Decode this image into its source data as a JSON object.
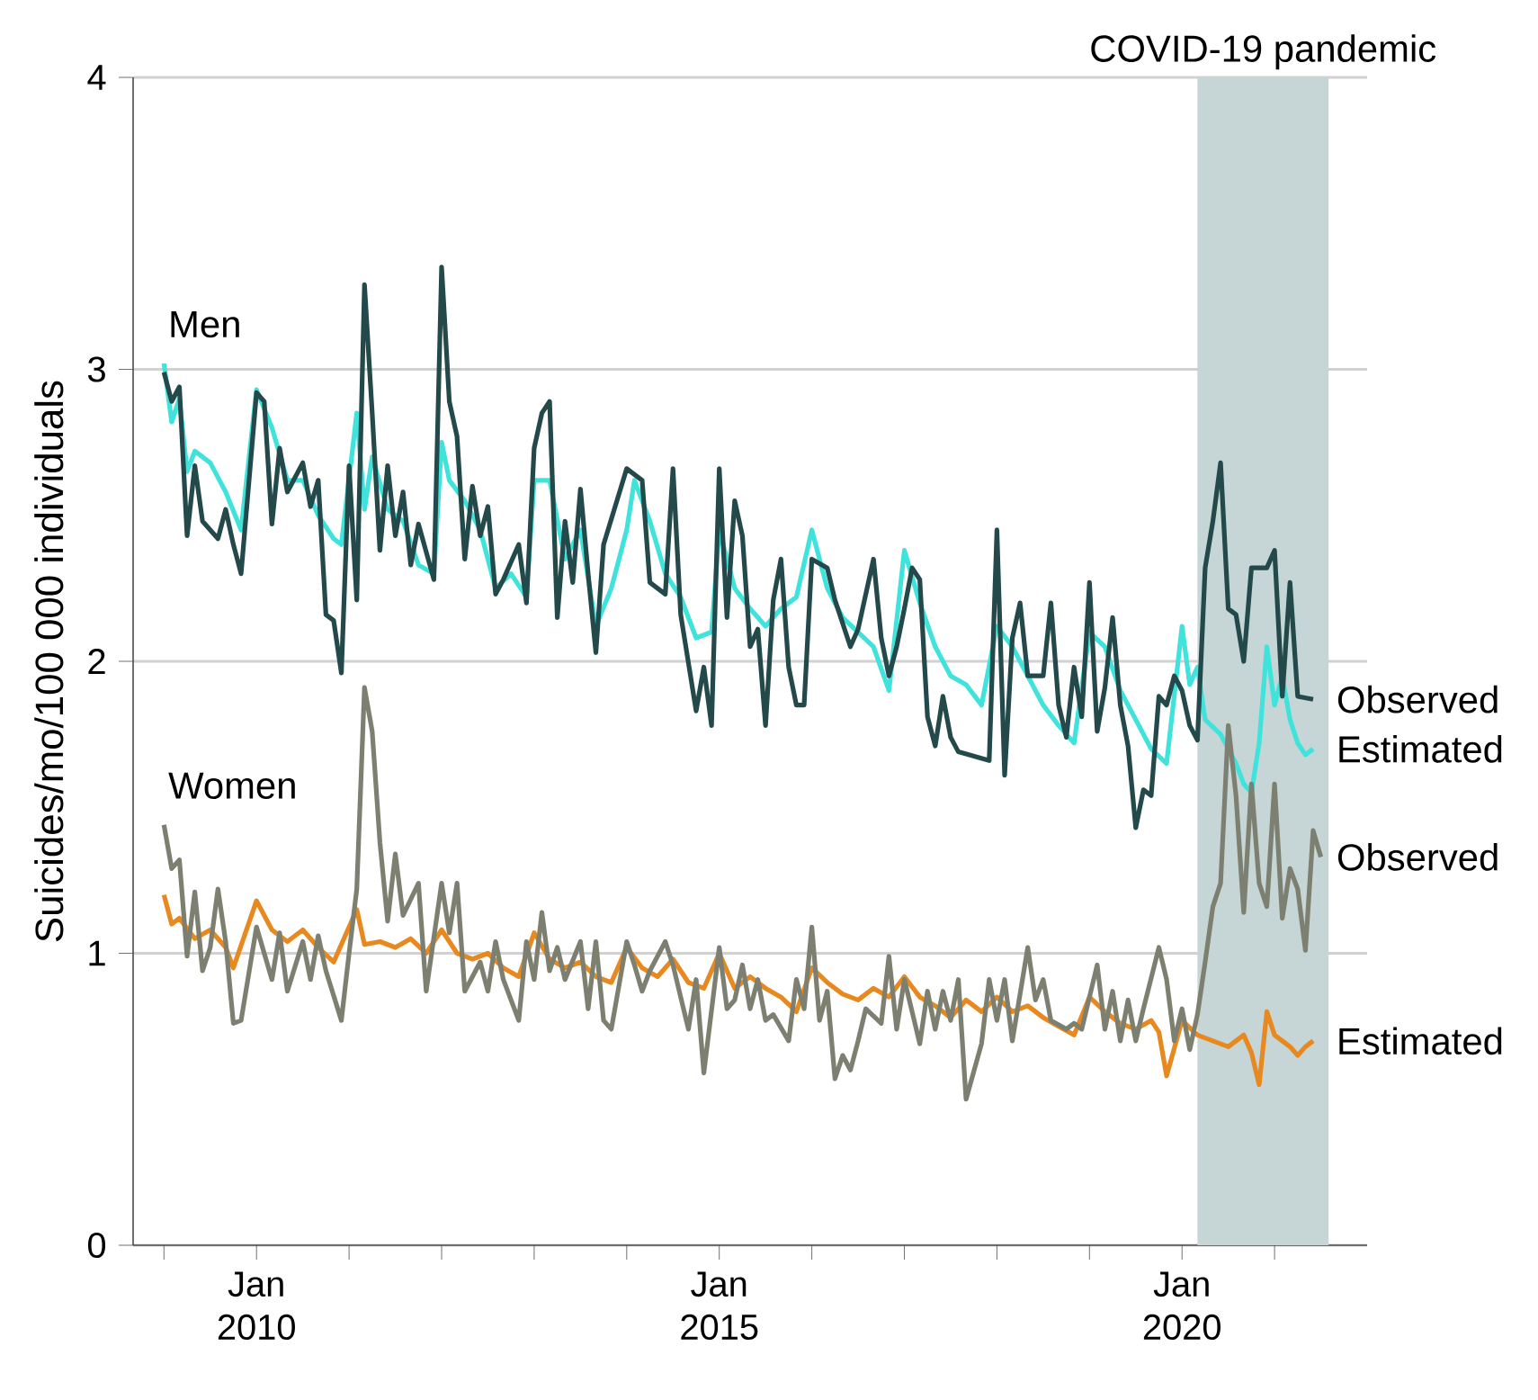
{
  "chart_data": {
    "type": "line",
    "ylabel": "Suicides/mo/100 000 individuals",
    "annotations": [
      "Men",
      "Women"
    ],
    "xlim": [
      "2008-09",
      "2022-01"
    ],
    "ylim": [
      0,
      4
    ],
    "xticks": [
      {
        "value": "2009-01",
        "label": null
      },
      {
        "value": "2010-01",
        "label": "Jan 2010"
      },
      {
        "value": "2011-01",
        "label": null
      },
      {
        "value": "2012-01",
        "label": null
      },
      {
        "value": "2013-01",
        "label": null
      },
      {
        "value": "2014-01",
        "label": null
      },
      {
        "value": "2015-01",
        "label": "Jan 2015"
      },
      {
        "value": "2016-01",
        "label": null
      },
      {
        "value": "2017-01",
        "label": null
      },
      {
        "value": "2018-01",
        "label": null
      },
      {
        "value": "2019-01",
        "label": null
      },
      {
        "value": "2020-01",
        "label": "Jan 2020"
      },
      {
        "value": "2021-01",
        "label": null
      }
    ],
    "yticks": [
      0,
      1,
      2,
      3,
      4
    ],
    "grid": "y",
    "bands": [
      {
        "axis": "x",
        "from": "2020-03",
        "to": "2021-08",
        "label": "COVID-19 pandemic",
        "color": "#c6d6d6"
      }
    ],
    "series": [
      {
        "name": "Estimated",
        "color": "#3fe3dc",
        "x": [
          "2009-01",
          "2009-02",
          "2009-03",
          "2009-04",
          "2009-05",
          "2009-07",
          "2009-09",
          "2009-11",
          "2010-01",
          "2010-03",
          "2010-05",
          "2010-07",
          "2010-09",
          "2010-11",
          "2010-12",
          "2011-02",
          "2011-03",
          "2011-04",
          "2011-06",
          "2011-08",
          "2011-10",
          "2011-12",
          "2012-01",
          "2012-02",
          "2012-04",
          "2012-06",
          "2012-08",
          "2012-10",
          "2012-12",
          "2013-01",
          "2013-03",
          "2013-05",
          "2013-07",
          "2013-09",
          "2013-11",
          "2014-01",
          "2014-02",
          "2014-04",
          "2014-06",
          "2014-08",
          "2014-10",
          "2014-12",
          "2015-01",
          "2015-03",
          "2015-05",
          "2015-07",
          "2015-09",
          "2015-11",
          "2016-01",
          "2016-03",
          "2016-05",
          "2016-07",
          "2016-09",
          "2016-11",
          "2017-01",
          "2017-03",
          "2017-05",
          "2017-07",
          "2017-09",
          "2017-11",
          "2018-01",
          "2018-03",
          "2018-05",
          "2018-07",
          "2018-09",
          "2018-11",
          "2019-01",
          "2019-03",
          "2019-05",
          "2019-07",
          "2019-09",
          "2019-11",
          "2020-01",
          "2020-02",
          "2020-03",
          "2020-04",
          "2020-06",
          "2020-08",
          "2020-09",
          "2020-10",
          "2020-11",
          "2020-12",
          "2021-01",
          "2021-02",
          "2021-03",
          "2021-04",
          "2021-05",
          "2021-06"
        ],
        "values": [
          3.02,
          2.82,
          2.9,
          2.65,
          2.72,
          2.68,
          2.58,
          2.45,
          2.93,
          2.8,
          2.62,
          2.62,
          2.5,
          2.42,
          2.4,
          2.85,
          2.52,
          2.7,
          2.52,
          2.48,
          2.33,
          2.3,
          2.75,
          2.62,
          2.55,
          2.45,
          2.25,
          2.3,
          2.22,
          2.62,
          2.62,
          2.35,
          2.45,
          2.12,
          2.25,
          2.45,
          2.62,
          2.48,
          2.3,
          2.22,
          2.08,
          2.1,
          2.45,
          2.25,
          2.18,
          2.12,
          2.18,
          2.22,
          2.45,
          2.25,
          2.15,
          2.1,
          2.05,
          1.9,
          2.38,
          2.2,
          2.05,
          1.95,
          1.92,
          1.85,
          2.12,
          2.05,
          1.95,
          1.85,
          1.78,
          1.72,
          2.1,
          2.05,
          1.9,
          1.8,
          1.7,
          1.65,
          2.12,
          1.92,
          1.98,
          1.8,
          1.75,
          1.65,
          1.58,
          1.55,
          1.72,
          2.05,
          1.85,
          1.95,
          1.8,
          1.72,
          1.68,
          1.7
        ]
      },
      {
        "name": "Observed",
        "color": "#24494a",
        "x": [
          "2009-01",
          "2009-02",
          "2009-03",
          "2009-04",
          "2009-05",
          "2009-06",
          "2009-08",
          "2009-09",
          "2009-10",
          "2009-11",
          "2010-01",
          "2010-02",
          "2010-03",
          "2010-04",
          "2010-05",
          "2010-07",
          "2010-08",
          "2010-09",
          "2010-10",
          "2010-11",
          "2010-12",
          "2011-01",
          "2011-02",
          "2011-03",
          "2011-04",
          "2011-05",
          "2011-06",
          "2011-07",
          "2011-08",
          "2011-09",
          "2011-10",
          "2011-12",
          "2012-01",
          "2012-02",
          "2012-03",
          "2012-04",
          "2012-05",
          "2012-06",
          "2012-07",
          "2012-08",
          "2012-09",
          "2012-11",
          "2012-12",
          "2013-01",
          "2013-02",
          "2013-03",
          "2013-04",
          "2013-05",
          "2013-06",
          "2013-07",
          "2013-08",
          "2013-09",
          "2013-10",
          "2014-01",
          "2014-03",
          "2014-04",
          "2014-06",
          "2014-07",
          "2014-08",
          "2014-10",
          "2014-11",
          "2014-12",
          "2015-01",
          "2015-02",
          "2015-03",
          "2015-04",
          "2015-05",
          "2015-06",
          "2015-07",
          "2015-08",
          "2015-09",
          "2015-10",
          "2015-11",
          "2015-12",
          "2016-01",
          "2016-03",
          "2016-04",
          "2016-06",
          "2016-07",
          "2016-09",
          "2016-10",
          "2016-11",
          "2016-12",
          "2017-01",
          "2017-02",
          "2017-03",
          "2017-04",
          "2017-05",
          "2017-06",
          "2017-07",
          "2017-08",
          "2017-12",
          "2018-01",
          "2018-02",
          "2018-03",
          "2018-04",
          "2018-05",
          "2018-07",
          "2018-08",
          "2018-09",
          "2018-10",
          "2018-11",
          "2018-12",
          "2019-01",
          "2019-02",
          "2019-03",
          "2019-04",
          "2019-05",
          "2019-06",
          "2019-07",
          "2019-08",
          "2019-09",
          "2019-10",
          "2019-11",
          "2019-12",
          "2020-01",
          "2020-02",
          "2020-03",
          "2020-04",
          "2020-05",
          "2020-06",
          "2020-07",
          "2020-08",
          "2020-09",
          "2020-10",
          "2020-12",
          "2021-01",
          "2021-02",
          "2021-03",
          "2021-04",
          "2021-06"
        ],
        "values": [
          2.99,
          2.89,
          2.94,
          2.43,
          2.67,
          2.48,
          2.42,
          2.52,
          2.4,
          2.3,
          2.92,
          2.89,
          2.47,
          2.73,
          2.58,
          2.68,
          2.53,
          2.62,
          2.16,
          2.14,
          1.96,
          2.67,
          2.21,
          3.29,
          2.85,
          2.38,
          2.67,
          2.43,
          2.58,
          2.33,
          2.47,
          2.28,
          3.35,
          2.89,
          2.77,
          2.35,
          2.6,
          2.43,
          2.53,
          2.23,
          2.28,
          2.4,
          2.2,
          2.73,
          2.85,
          2.89,
          2.15,
          2.48,
          2.27,
          2.59,
          2.3,
          2.03,
          2.4,
          2.66,
          2.62,
          2.27,
          2.23,
          2.66,
          2.16,
          1.83,
          1.98,
          1.78,
          2.66,
          2.15,
          2.55,
          2.43,
          2.05,
          2.11,
          1.78,
          2.21,
          2.35,
          1.98,
          1.85,
          1.85,
          2.35,
          2.32,
          2.21,
          2.05,
          2.11,
          2.35,
          2.08,
          1.95,
          2.05,
          2.18,
          2.32,
          2.28,
          1.81,
          1.71,
          1.88,
          1.74,
          1.69,
          1.66,
          2.45,
          1.61,
          2.08,
          2.2,
          1.95,
          1.95,
          2.2,
          1.85,
          1.74,
          1.98,
          1.81,
          2.27,
          1.76,
          1.91,
          2.15,
          1.85,
          1.71,
          1.43,
          1.56,
          1.54,
          1.88,
          1.85,
          1.95,
          1.9,
          1.78,
          1.73,
          2.32,
          2.48,
          2.68,
          2.18,
          2.16,
          2.0,
          2.32,
          2.32,
          2.38,
          1.88,
          2.27,
          1.88,
          1.87
        ]
      },
      {
        "name": "Estimated",
        "color": "#e8891f",
        "x": [
          "2009-01",
          "2009-02",
          "2009-03",
          "2009-05",
          "2009-07",
          "2009-09",
          "2009-10",
          "2010-01",
          "2010-03",
          "2010-05",
          "2010-07",
          "2010-09",
          "2010-11",
          "2011-02",
          "2011-03",
          "2011-05",
          "2011-07",
          "2011-09",
          "2011-11",
          "2012-01",
          "2012-03",
          "2012-05",
          "2012-07",
          "2012-09",
          "2012-11",
          "2013-01",
          "2013-03",
          "2013-05",
          "2013-07",
          "2013-09",
          "2013-11",
          "2014-01",
          "2014-03",
          "2014-05",
          "2014-07",
          "2014-09",
          "2014-11",
          "2015-01",
          "2015-03",
          "2015-05",
          "2015-07",
          "2015-09",
          "2015-11",
          "2016-01",
          "2016-03",
          "2016-05",
          "2016-07",
          "2016-09",
          "2016-11",
          "2017-01",
          "2017-03",
          "2017-05",
          "2017-07",
          "2017-09",
          "2017-11",
          "2018-01",
          "2018-03",
          "2018-05",
          "2018-07",
          "2018-09",
          "2018-11",
          "2019-01",
          "2019-03",
          "2019-05",
          "2019-07",
          "2019-09",
          "2019-10",
          "2019-11",
          "2020-01",
          "2020-03",
          "2020-05",
          "2020-07",
          "2020-09",
          "2020-10",
          "2020-11",
          "2020-12",
          "2021-01",
          "2021-02",
          "2021-03",
          "2021-04",
          "2021-05",
          "2021-06"
        ],
        "values": [
          1.2,
          1.1,
          1.12,
          1.05,
          1.08,
          1.02,
          0.95,
          1.18,
          1.08,
          1.04,
          1.08,
          1.02,
          0.97,
          1.15,
          1.03,
          1.04,
          1.02,
          1.05,
          1.0,
          1.08,
          1.0,
          0.98,
          1.0,
          0.95,
          0.92,
          1.07,
          0.98,
          0.95,
          0.97,
          0.92,
          0.9,
          1.02,
          0.95,
          0.92,
          0.98,
          0.9,
          0.88,
          1.0,
          0.88,
          0.92,
          0.88,
          0.85,
          0.8,
          0.95,
          0.9,
          0.86,
          0.84,
          0.88,
          0.85,
          0.92,
          0.85,
          0.82,
          0.78,
          0.84,
          0.8,
          0.85,
          0.8,
          0.82,
          0.78,
          0.75,
          0.72,
          0.85,
          0.8,
          0.76,
          0.74,
          0.77,
          0.73,
          0.58,
          0.77,
          0.72,
          0.7,
          0.68,
          0.72,
          0.66,
          0.55,
          0.8,
          0.72,
          0.7,
          0.68,
          0.65,
          0.68,
          0.7
        ]
      },
      {
        "name": "Observed",
        "color": "#7d8070",
        "x": [
          "2009-01",
          "2009-02",
          "2009-03",
          "2009-04",
          "2009-05",
          "2009-06",
          "2009-07",
          "2009-08",
          "2009-09",
          "2009-10",
          "2009-11",
          "2010-01",
          "2010-03",
          "2010-04",
          "2010-05",
          "2010-07",
          "2010-08",
          "2010-09",
          "2010-10",
          "2010-12",
          "2011-01",
          "2011-02",
          "2011-03",
          "2011-04",
          "2011-05",
          "2011-06",
          "2011-07",
          "2011-08",
          "2011-10",
          "2011-11",
          "2012-01",
          "2012-02",
          "2012-03",
          "2012-04",
          "2012-06",
          "2012-07",
          "2012-08",
          "2012-09",
          "2012-11",
          "2012-12",
          "2013-01",
          "2013-02",
          "2013-03",
          "2013-04",
          "2013-05",
          "2013-07",
          "2013-08",
          "2013-09",
          "2013-10",
          "2013-11",
          "2014-01",
          "2014-02",
          "2014-03",
          "2014-04",
          "2014-06",
          "2014-07",
          "2014-09",
          "2014-10",
          "2014-11",
          "2015-01",
          "2015-02",
          "2015-03",
          "2015-04",
          "2015-05",
          "2015-06",
          "2015-07",
          "2015-08",
          "2015-10",
          "2015-11",
          "2015-12",
          "2016-01",
          "2016-02",
          "2016-03",
          "2016-04",
          "2016-05",
          "2016-06",
          "2016-07",
          "2016-08",
          "2016-10",
          "2016-11",
          "2016-12",
          "2017-01",
          "2017-03",
          "2017-04",
          "2017-05",
          "2017-06",
          "2017-07",
          "2017-08",
          "2017-09",
          "2017-11",
          "2017-12",
          "2018-01",
          "2018-02",
          "2018-03",
          "2018-05",
          "2018-06",
          "2018-07",
          "2018-08",
          "2018-10",
          "2018-11",
          "2018-12",
          "2019-02",
          "2019-03",
          "2019-04",
          "2019-05",
          "2019-06",
          "2019-07",
          "2019-08",
          "2019-10",
          "2019-11",
          "2019-12",
          "2020-01",
          "2020-02",
          "2020-03",
          "2020-04",
          "2020-05",
          "2020-06",
          "2020-07",
          "2020-08",
          "2020-09",
          "2020-10",
          "2020-11",
          "2020-12",
          "2021-01",
          "2021-02",
          "2021-03",
          "2021-04",
          "2021-05",
          "2021-06",
          "2021-07"
        ],
        "values": [
          1.44,
          1.29,
          1.32,
          0.99,
          1.21,
          0.94,
          1.02,
          1.22,
          1.04,
          0.76,
          0.77,
          1.09,
          0.91,
          1.07,
          0.87,
          1.04,
          0.91,
          1.06,
          0.94,
          0.77,
          1.0,
          1.22,
          1.91,
          1.76,
          1.38,
          1.11,
          1.34,
          1.13,
          1.24,
          0.87,
          1.24,
          1.07,
          1.24,
          0.87,
          0.97,
          0.87,
          1.04,
          0.91,
          0.77,
          1.04,
          0.91,
          1.14,
          0.94,
          1.02,
          0.91,
          1.04,
          0.81,
          1.04,
          0.77,
          0.74,
          1.04,
          0.96,
          0.87,
          0.94,
          1.04,
          0.96,
          0.74,
          0.91,
          0.59,
          1.02,
          0.81,
          0.84,
          0.96,
          0.81,
          0.91,
          0.77,
          0.79,
          0.7,
          0.91,
          0.81,
          1.09,
          0.77,
          0.87,
          0.57,
          0.65,
          0.6,
          0.7,
          0.81,
          0.76,
          0.99,
          0.74,
          0.91,
          0.69,
          0.87,
          0.74,
          0.87,
          0.77,
          0.91,
          0.5,
          0.69,
          0.91,
          0.77,
          0.91,
          0.7,
          1.02,
          0.84,
          0.91,
          0.77,
          0.74,
          0.76,
          0.74,
          0.96,
          0.74,
          0.87,
          0.7,
          0.84,
          0.7,
          0.81,
          1.02,
          0.91,
          0.7,
          0.81,
          0.67,
          0.79,
          0.97,
          1.16,
          1.24,
          1.78,
          1.54,
          1.14,
          1.58,
          1.24,
          1.16,
          1.58,
          1.12,
          1.29,
          1.22,
          1.01,
          1.42,
          1.33
        ]
      }
    ]
  }
}
